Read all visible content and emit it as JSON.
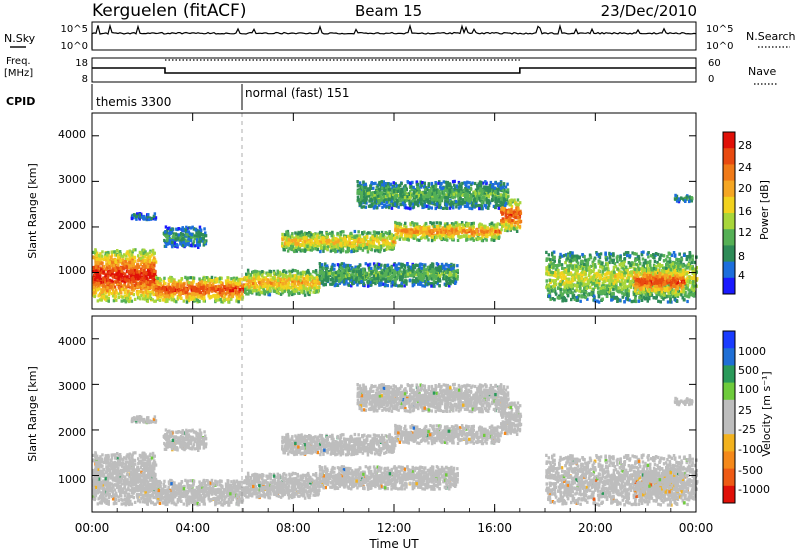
{
  "header": {
    "station": "Kerguelen (fitACF)",
    "beam": "Beam 15",
    "date": "23/Dec/2010"
  },
  "sky_panel": {
    "left_label": "N.Sky",
    "right_label": "N.Search",
    "left_ticks": [
      "10^5",
      "10^0"
    ],
    "right_ticks": [
      "10^5",
      "10^0"
    ]
  },
  "freq_panel": {
    "left_label_line1": "Freq.",
    "left_label_line2": "[MHz]",
    "left_ticks": [
      "18",
      "8"
    ],
    "right_label": "Nave",
    "right_ticks": [
      "60",
      "0"
    ]
  },
  "cpid_panel": {
    "label": "CPID",
    "modes": [
      {
        "name": "themis 3300",
        "start_hour": 0
      },
      {
        "name": "normal (fast) 151",
        "start_hour": 6
      }
    ]
  },
  "x_axis": {
    "label": "Time UT",
    "tick_labels": [
      "00:00",
      "04:00",
      "08:00",
      "12:00",
      "16:00",
      "20:00",
      "00:00"
    ],
    "range_hours": [
      0,
      24
    ]
  },
  "power_panel": {
    "ylabel": "Slant Range [km]",
    "y_tick_labels": [
      "1000",
      "2000",
      "3000",
      "4000"
    ],
    "colorbar_label": "Power [dB]",
    "colorbar_ticks": [
      "4",
      "8",
      "12",
      "16",
      "20",
      "24",
      "28"
    ],
    "colors": [
      "#1a1aff",
      "#1c6edc",
      "#2e8b57",
      "#55b055",
      "#a8d63a",
      "#f2d21e",
      "#f5a623",
      "#f07a18",
      "#e84a10",
      "#e01008"
    ]
  },
  "velocity_panel": {
    "ylabel": "Slant Range [km]",
    "y_tick_labels": [
      "1000",
      "2000",
      "3000",
      "4000"
    ],
    "colorbar_label": "Velocity [m s⁻¹]",
    "colorbar_ticks": [
      "1000",
      "500",
      "100",
      "25",
      "-25",
      "-100",
      "-500",
      "-1000"
    ],
    "colors": [
      "#1a3cff",
      "#1f6fd6",
      "#2a9a5a",
      "#6ecb3c",
      "#bdbdbd",
      "#bdbdbd",
      "#f2b21e",
      "#f5891a",
      "#ee5a14",
      "#e01008"
    ]
  },
  "chart_data": {
    "type": "heatmap",
    "x_unit": "hours UT",
    "y_unit": "km",
    "xlim": [
      0,
      24
    ],
    "ylim": [
      200,
      4500
    ],
    "power_range_db": [
      0,
      31
    ],
    "velocity_range_ms": [
      -1200,
      1200
    ],
    "freq_segments": [
      {
        "start": 0,
        "end": 2.9,
        "freq_mhz": 14
      },
      {
        "start": 2.9,
        "end": 17,
        "freq_mhz": 11.5
      },
      {
        "start": 17,
        "end": 24,
        "freq_mhz": 14
      }
    ],
    "nave_level": 55,
    "echo_bands": [
      {
        "t0": 0.0,
        "t1": 2.5,
        "r0": 350,
        "r1": 1500,
        "power": 26,
        "velocity": -40
      },
      {
        "t0": 2.5,
        "t1": 6.0,
        "r0": 350,
        "r1": 900,
        "power": 24,
        "velocity": 10
      },
      {
        "t0": 6.0,
        "t1": 9.0,
        "r0": 500,
        "r1": 1050,
        "power": 18,
        "velocity": -10
      },
      {
        "t0": 9.0,
        "t1": 14.5,
        "r0": 700,
        "r1": 1200,
        "power": 10,
        "velocity": 15
      },
      {
        "t0": 7.5,
        "t1": 12.0,
        "r0": 1450,
        "r1": 1900,
        "power": 17,
        "velocity": 0
      },
      {
        "t0": 12.0,
        "t1": 16.2,
        "r0": 1700,
        "r1": 2100,
        "power": 20,
        "velocity": -5
      },
      {
        "t0": 16.2,
        "t1": 17.0,
        "r0": 1900,
        "r1": 2600,
        "power": 24,
        "velocity": -60
      },
      {
        "t0": 10.5,
        "t1": 16.5,
        "r0": 2400,
        "r1": 3000,
        "power": 10,
        "velocity": 120
      },
      {
        "t0": 18.0,
        "t1": 24.0,
        "r0": 350,
        "r1": 1450,
        "power": 14,
        "velocity": -80
      },
      {
        "t0": 21.5,
        "t1": 23.5,
        "r0": 500,
        "r1": 1100,
        "power": 24,
        "velocity": -200
      },
      {
        "t0": 2.8,
        "t1": 4.5,
        "r0": 1550,
        "r1": 2000,
        "power": 8,
        "velocity": 30
      },
      {
        "t0": 1.5,
        "t1": 2.5,
        "r0": 2150,
        "r1": 2300,
        "power": 6,
        "velocity": 40
      },
      {
        "t0": 23.0,
        "t1": 23.8,
        "r0": 2550,
        "r1": 2700,
        "power": 8,
        "velocity": 50
      }
    ]
  }
}
